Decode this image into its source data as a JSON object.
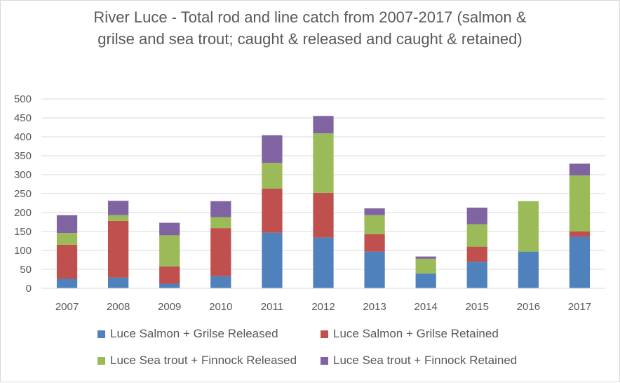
{
  "chart_data": {
    "type": "bar",
    "stacked": true,
    "title": "River Luce - Total rod and line catch from 2007-2017 (salmon &\ngrilse and sea trout; caught & released and caught & retained)",
    "xlabel": "",
    "ylabel": "",
    "ylim": [
      0,
      500
    ],
    "yticks": [
      0,
      50,
      100,
      150,
      200,
      250,
      300,
      350,
      400,
      450,
      500
    ],
    "grid": true,
    "legend_position": "bottom",
    "categories": [
      "2007",
      "2008",
      "2009",
      "2010",
      "2011",
      "2012",
      "2013",
      "2014",
      "2015",
      "2016",
      "2017"
    ],
    "series": [
      {
        "name": "Luce Salmon + Grilse Released",
        "color": "#4f81bd",
        "values": [
          25,
          28,
          12,
          32,
          147,
          134,
          97,
          39,
          70,
          97,
          136
        ]
      },
      {
        "name": "Luce Salmon + Grilse Retained",
        "color": "#c0504d",
        "values": [
          90,
          150,
          46,
          127,
          116,
          118,
          46,
          0,
          40,
          0,
          14
        ]
      },
      {
        "name": "Luce Sea trout + Finnock Released",
        "color": "#9bbb59",
        "values": [
          31,
          15,
          82,
          29,
          68,
          157,
          50,
          39,
          59,
          133,
          148
        ]
      },
      {
        "name": "Luce Sea trout + Finnock Retained",
        "color": "#8064a2",
        "values": [
          47,
          38,
          33,
          42,
          73,
          46,
          18,
          6,
          44,
          0,
          31
        ]
      }
    ]
  }
}
